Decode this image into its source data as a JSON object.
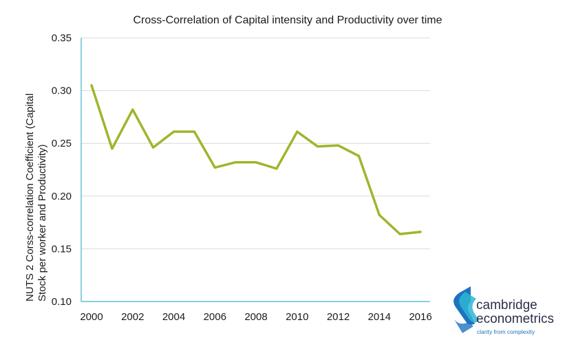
{
  "chart_data": {
    "type": "line",
    "title": "Cross-Correlation of Capital intensity and Productivity over time",
    "ylabel_lines": [
      "NUTS 2 Corss-correlation Coefficient (Capital",
      "Stock per worker and Productivity)"
    ],
    "xlabel": "",
    "x": [
      2000,
      2001,
      2002,
      2003,
      2004,
      2005,
      2006,
      2007,
      2008,
      2009,
      2010,
      2011,
      2012,
      2013,
      2014,
      2015,
      2016
    ],
    "x_tick_labels": [
      "2000",
      "2002",
      "2004",
      "2006",
      "2008",
      "2010",
      "2012",
      "2014",
      "2016"
    ],
    "y_tick_labels": [
      "0.35",
      "0.30",
      "0.25",
      "0.20",
      "0.15",
      "0.10"
    ],
    "series": [
      {
        "values": [
          0.305,
          0.245,
          0.282,
          0.246,
          0.261,
          0.261,
          0.227,
          0.232,
          0.232,
          0.226,
          0.261,
          0.247,
          0.248,
          0.238,
          0.182,
          0.164,
          0.166
        ],
        "color": "#9fb52b"
      }
    ],
    "ylim": [
      0.1,
      0.35
    ],
    "xlim": [
      2000,
      2016
    ],
    "grid": true,
    "legend": "none"
  },
  "logo": {
    "line1": "cambridge",
    "line2": "econometrics",
    "tagline": "clarity from complexity",
    "colors": {
      "primary": "#1e73be",
      "accent": "#2fb5d6",
      "text": "#2a2f4a"
    }
  },
  "colors": {
    "grid": "#d9d9d9",
    "axis": "#3cb4c8"
  }
}
